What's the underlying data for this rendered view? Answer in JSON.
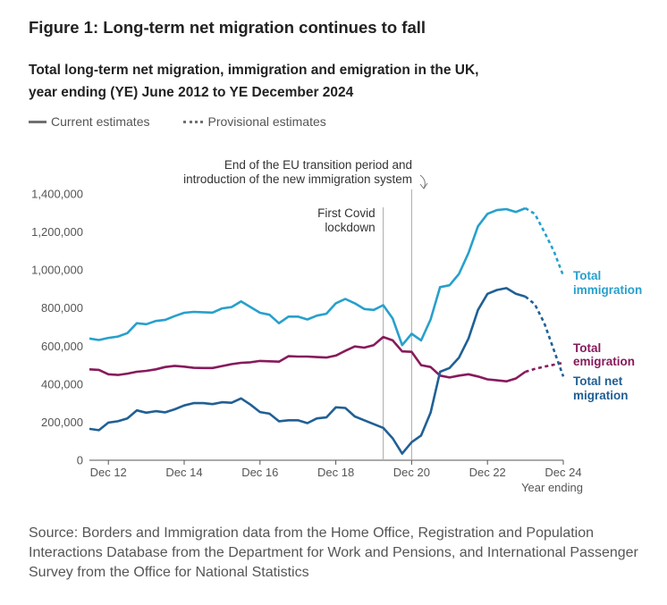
{
  "figure_title": "Figure 1: Long-term net migration continues to fall",
  "subtitle_line1": "Total long-term net migration, immigration and emigration in the UK,",
  "subtitle_line2": "year ending (YE) June 2012 to YE December 2024",
  "legend": {
    "current": "Current estimates",
    "provisional": "Provisional estimates"
  },
  "source": "Source: Borders and Immigration data from the Home Office, Registration and Population Interactions Database from the Department for Work and Pensions, and International Passenger Survey from the Office for National Statistics",
  "colors": {
    "immigration": "#27a0cc",
    "emigration": "#871a5b",
    "net": "#206095",
    "axis": "#555555",
    "grid": "#bbbbbb"
  },
  "chart_data": {
    "type": "line",
    "title": "Total long-term net migration, immigration and emigration in the UK, year ending (YE) June 2012 to YE December 2024",
    "xlabel": "Year ending",
    "ylabel": "",
    "ylim": [
      0,
      1400000
    ],
    "yticks": [
      0,
      200000,
      400000,
      600000,
      800000,
      1000000,
      1200000,
      1400000
    ],
    "ytick_labels": [
      "0",
      "200,000",
      "400,000",
      "600,000",
      "800,000",
      "1,000,000",
      "1,200,000",
      "1,400,000"
    ],
    "xlim": [
      0,
      50
    ],
    "xticks": [
      {
        "x": 2,
        "label": "Dec 12"
      },
      {
        "x": 10,
        "label": "Dec 14"
      },
      {
        "x": 18,
        "label": "Dec 16"
      },
      {
        "x": 26,
        "label": "Dec 18"
      },
      {
        "x": 34,
        "label": "Dec 20"
      },
      {
        "x": 42,
        "label": "Dec 22"
      },
      {
        "x": 50,
        "label": "Dec 24"
      }
    ],
    "annotations": [
      {
        "x": 31,
        "lines": [
          "First Covid",
          "lockdown"
        ]
      },
      {
        "x": 34,
        "lines": [
          "End of the EU transition period and",
          "introduction of the new immigration system"
        ]
      }
    ],
    "series": [
      {
        "name": "Total immigration",
        "label_lines": [
          "Total",
          "immigration"
        ],
        "color_key": "immigration",
        "values": [
          640000,
          632000,
          643000,
          650000,
          668000,
          720000,
          715000,
          732000,
          738000,
          758000,
          775000,
          780000,
          778000,
          776000,
          798000,
          805000,
          835000,
          805000,
          775000,
          765000,
          720000,
          755000,
          755000,
          740000,
          760000,
          770000,
          825000,
          848000,
          825000,
          795000,
          790000,
          815000,
          745000,
          605000,
          665000,
          630000,
          740000,
          910000,
          920000,
          980000,
          1090000,
          1230000,
          1295000,
          1315000,
          1320000,
          1305000,
          1325000,
          1295000,
          1200000,
          1100000,
          970000
        ],
        "provisional_from": 46
      },
      {
        "name": "Total emigration",
        "label_lines": [
          "Total",
          "emigration"
        ],
        "color_key": "emigration",
        "values": [
          478000,
          475000,
          452000,
          448000,
          455000,
          465000,
          470000,
          478000,
          490000,
          496000,
          492000,
          486000,
          485000,
          485000,
          495000,
          505000,
          512000,
          515000,
          522000,
          520000,
          518000,
          547000,
          545000,
          545000,
          542000,
          540000,
          550000,
          575000,
          598000,
          592000,
          605000,
          648000,
          630000,
          572000,
          570000,
          500000,
          490000,
          445000,
          435000,
          445000,
          452000,
          440000,
          425000,
          420000,
          415000,
          430000,
          465000,
          480000,
          492000,
          502000,
          512000
        ],
        "provisional_from": 46
      },
      {
        "name": "Total net migration",
        "label_lines": [
          "Total net",
          "migration"
        ],
        "color_key": "net",
        "values": [
          165000,
          158000,
          198000,
          205000,
          220000,
          262000,
          250000,
          258000,
          252000,
          268000,
          288000,
          300000,
          300000,
          295000,
          305000,
          302000,
          325000,
          292000,
          253000,
          245000,
          205000,
          210000,
          210000,
          195000,
          220000,
          225000,
          278000,
          275000,
          230000,
          210000,
          190000,
          170000,
          115000,
          35000,
          95000,
          130000,
          250000,
          465000,
          485000,
          540000,
          640000,
          790000,
          875000,
          895000,
          905000,
          875000,
          860000,
          820000,
          720000,
          580000,
          440000
        ],
        "provisional_from": 46
      }
    ]
  }
}
